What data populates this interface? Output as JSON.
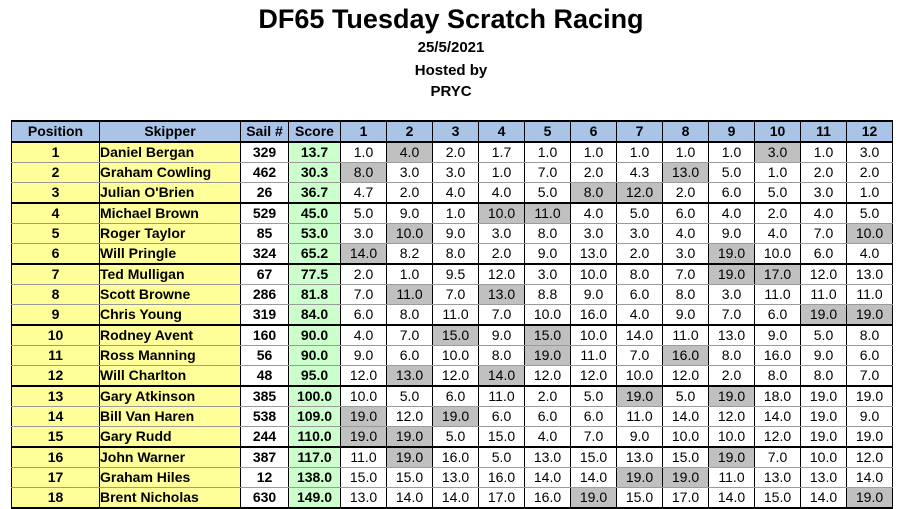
{
  "header": {
    "title": "DF65 Tuesday Scratch Racing",
    "date": "25/5/2021",
    "hosted_by_label": "Hosted by",
    "host": "PRYC"
  },
  "columns": [
    "Position",
    "Skipper",
    "Sail #",
    "Score",
    "1",
    "2",
    "3",
    "4",
    "5",
    "6",
    "7",
    "8",
    "9",
    "10",
    "11",
    "12"
  ],
  "colors": {
    "header_bg": "#a9c4e6",
    "name_bg": "#ffff99",
    "score_bg": "#ccffcc",
    "discard_bg": "#c0c0c0"
  },
  "rows": [
    {
      "pos": "1",
      "skipper": "Daniel Bergan",
      "sail": "329",
      "score": "13.7",
      "races": [
        "1.0",
        "4.0",
        "2.0",
        "1.7",
        "1.0",
        "1.0",
        "1.0",
        "1.0",
        "1.0",
        "3.0",
        "1.0",
        "3.0"
      ],
      "drops": [
        1,
        9
      ]
    },
    {
      "pos": "2",
      "skipper": "Graham Cowling",
      "sail": "462",
      "score": "30.3",
      "races": [
        "8.0",
        "3.0",
        "3.0",
        "1.0",
        "7.0",
        "2.0",
        "4.3",
        "13.0",
        "5.0",
        "1.0",
        "2.0",
        "2.0"
      ],
      "drops": [
        0,
        7
      ]
    },
    {
      "pos": "3",
      "skipper": "Julian O'Brien",
      "sail": "26",
      "score": "36.7",
      "races": [
        "4.7",
        "2.0",
        "4.0",
        "4.0",
        "5.0",
        "8.0",
        "12.0",
        "2.0",
        "6.0",
        "5.0",
        "3.0",
        "1.0"
      ],
      "drops": [
        5,
        6
      ]
    },
    {
      "pos": "4",
      "skipper": "Michael Brown",
      "sail": "529",
      "score": "45.0",
      "races": [
        "5.0",
        "9.0",
        "1.0",
        "10.0",
        "11.0",
        "4.0",
        "5.0",
        "6.0",
        "4.0",
        "2.0",
        "4.0",
        "5.0"
      ],
      "drops": [
        3,
        4
      ]
    },
    {
      "pos": "5",
      "skipper": "Roger Taylor",
      "sail": "85",
      "score": "53.0",
      "races": [
        "3.0",
        "10.0",
        "9.0",
        "3.0",
        "8.0",
        "3.0",
        "3.0",
        "4.0",
        "9.0",
        "4.0",
        "7.0",
        "10.0"
      ],
      "drops": [
        1,
        11
      ]
    },
    {
      "pos": "6",
      "skipper": "Will Pringle",
      "sail": "324",
      "score": "65.2",
      "races": [
        "14.0",
        "8.2",
        "8.0",
        "2.0",
        "9.0",
        "13.0",
        "2.0",
        "3.0",
        "19.0",
        "10.0",
        "6.0",
        "4.0"
      ],
      "drops": [
        0,
        8
      ]
    },
    {
      "pos": "7",
      "skipper": "Ted Mulligan",
      "sail": "67",
      "score": "77.5",
      "races": [
        "2.0",
        "1.0",
        "9.5",
        "12.0",
        "3.0",
        "10.0",
        "8.0",
        "7.0",
        "19.0",
        "17.0",
        "12.0",
        "13.0"
      ],
      "drops": [
        8,
        9
      ]
    },
    {
      "pos": "8",
      "skipper": "Scott Browne",
      "sail": "286",
      "score": "81.8",
      "races": [
        "7.0",
        "11.0",
        "7.0",
        "13.0",
        "8.8",
        "9.0",
        "6.0",
        "8.0",
        "3.0",
        "11.0",
        "11.0",
        "11.0"
      ],
      "drops": [
        1,
        3
      ]
    },
    {
      "pos": "9",
      "skipper": "Chris Young",
      "sail": "319",
      "score": "84.0",
      "races": [
        "6.0",
        "8.0",
        "11.0",
        "7.0",
        "10.0",
        "16.0",
        "4.0",
        "9.0",
        "7.0",
        "6.0",
        "19.0",
        "19.0"
      ],
      "drops": [
        10,
        11
      ]
    },
    {
      "pos": "10",
      "skipper": "Rodney Avent",
      "sail": "160",
      "score": "90.0",
      "races": [
        "4.0",
        "7.0",
        "15.0",
        "9.0",
        "15.0",
        "10.0",
        "14.0",
        "11.0",
        "13.0",
        "9.0",
        "5.0",
        "8.0"
      ],
      "drops": [
        2,
        4
      ]
    },
    {
      "pos": "11",
      "skipper": "Ross Manning",
      "sail": "56",
      "score": "90.0",
      "races": [
        "9.0",
        "6.0",
        "10.0",
        "8.0",
        "19.0",
        "11.0",
        "7.0",
        "16.0",
        "8.0",
        "16.0",
        "9.0",
        "6.0"
      ],
      "drops": [
        4,
        7
      ]
    },
    {
      "pos": "12",
      "skipper": "Will Charlton",
      "sail": "48",
      "score": "95.0",
      "races": [
        "12.0",
        "13.0",
        "12.0",
        "14.0",
        "12.0",
        "12.0",
        "10.0",
        "12.0",
        "2.0",
        "8.0",
        "8.0",
        "7.0"
      ],
      "drops": [
        1,
        3
      ]
    },
    {
      "pos": "13",
      "skipper": "Gary Atkinson",
      "sail": "385",
      "score": "100.0",
      "races": [
        "10.0",
        "5.0",
        "6.0",
        "11.0",
        "2.0",
        "5.0",
        "19.0",
        "5.0",
        "19.0",
        "18.0",
        "19.0",
        "19.0"
      ],
      "drops": [
        6,
        8
      ]
    },
    {
      "pos": "14",
      "skipper": "Bill Van Haren",
      "sail": "538",
      "score": "109.0",
      "races": [
        "19.0",
        "12.0",
        "19.0",
        "6.0",
        "6.0",
        "6.0",
        "11.0",
        "14.0",
        "12.0",
        "14.0",
        "19.0",
        "9.0"
      ],
      "drops": [
        0,
        2
      ]
    },
    {
      "pos": "15",
      "skipper": "Gary Rudd",
      "sail": "244",
      "score": "110.0",
      "races": [
        "19.0",
        "19.0",
        "5.0",
        "15.0",
        "4.0",
        "7.0",
        "9.0",
        "10.0",
        "10.0",
        "12.0",
        "19.0",
        "19.0"
      ],
      "drops": [
        0,
        1
      ]
    },
    {
      "pos": "16",
      "skipper": "John Warner",
      "sail": "387",
      "score": "117.0",
      "races": [
        "11.0",
        "19.0",
        "16.0",
        "5.0",
        "13.0",
        "15.0",
        "13.0",
        "15.0",
        "19.0",
        "7.0",
        "10.0",
        "12.0"
      ],
      "drops": [
        1,
        8
      ]
    },
    {
      "pos": "17",
      "skipper": "Graham Hiles",
      "sail": "12",
      "score": "138.0",
      "races": [
        "15.0",
        "15.0",
        "13.0",
        "16.0",
        "14.0",
        "14.0",
        "19.0",
        "19.0",
        "11.0",
        "13.0",
        "13.0",
        "14.0"
      ],
      "drops": [
        6,
        7
      ]
    },
    {
      "pos": "18",
      "skipper": "Brent Nicholas",
      "sail": "630",
      "score": "149.0",
      "races": [
        "13.0",
        "14.0",
        "14.0",
        "17.0",
        "16.0",
        "19.0",
        "15.0",
        "17.0",
        "14.0",
        "15.0",
        "14.0",
        "19.0"
      ],
      "drops": [
        5,
        11
      ]
    }
  ]
}
